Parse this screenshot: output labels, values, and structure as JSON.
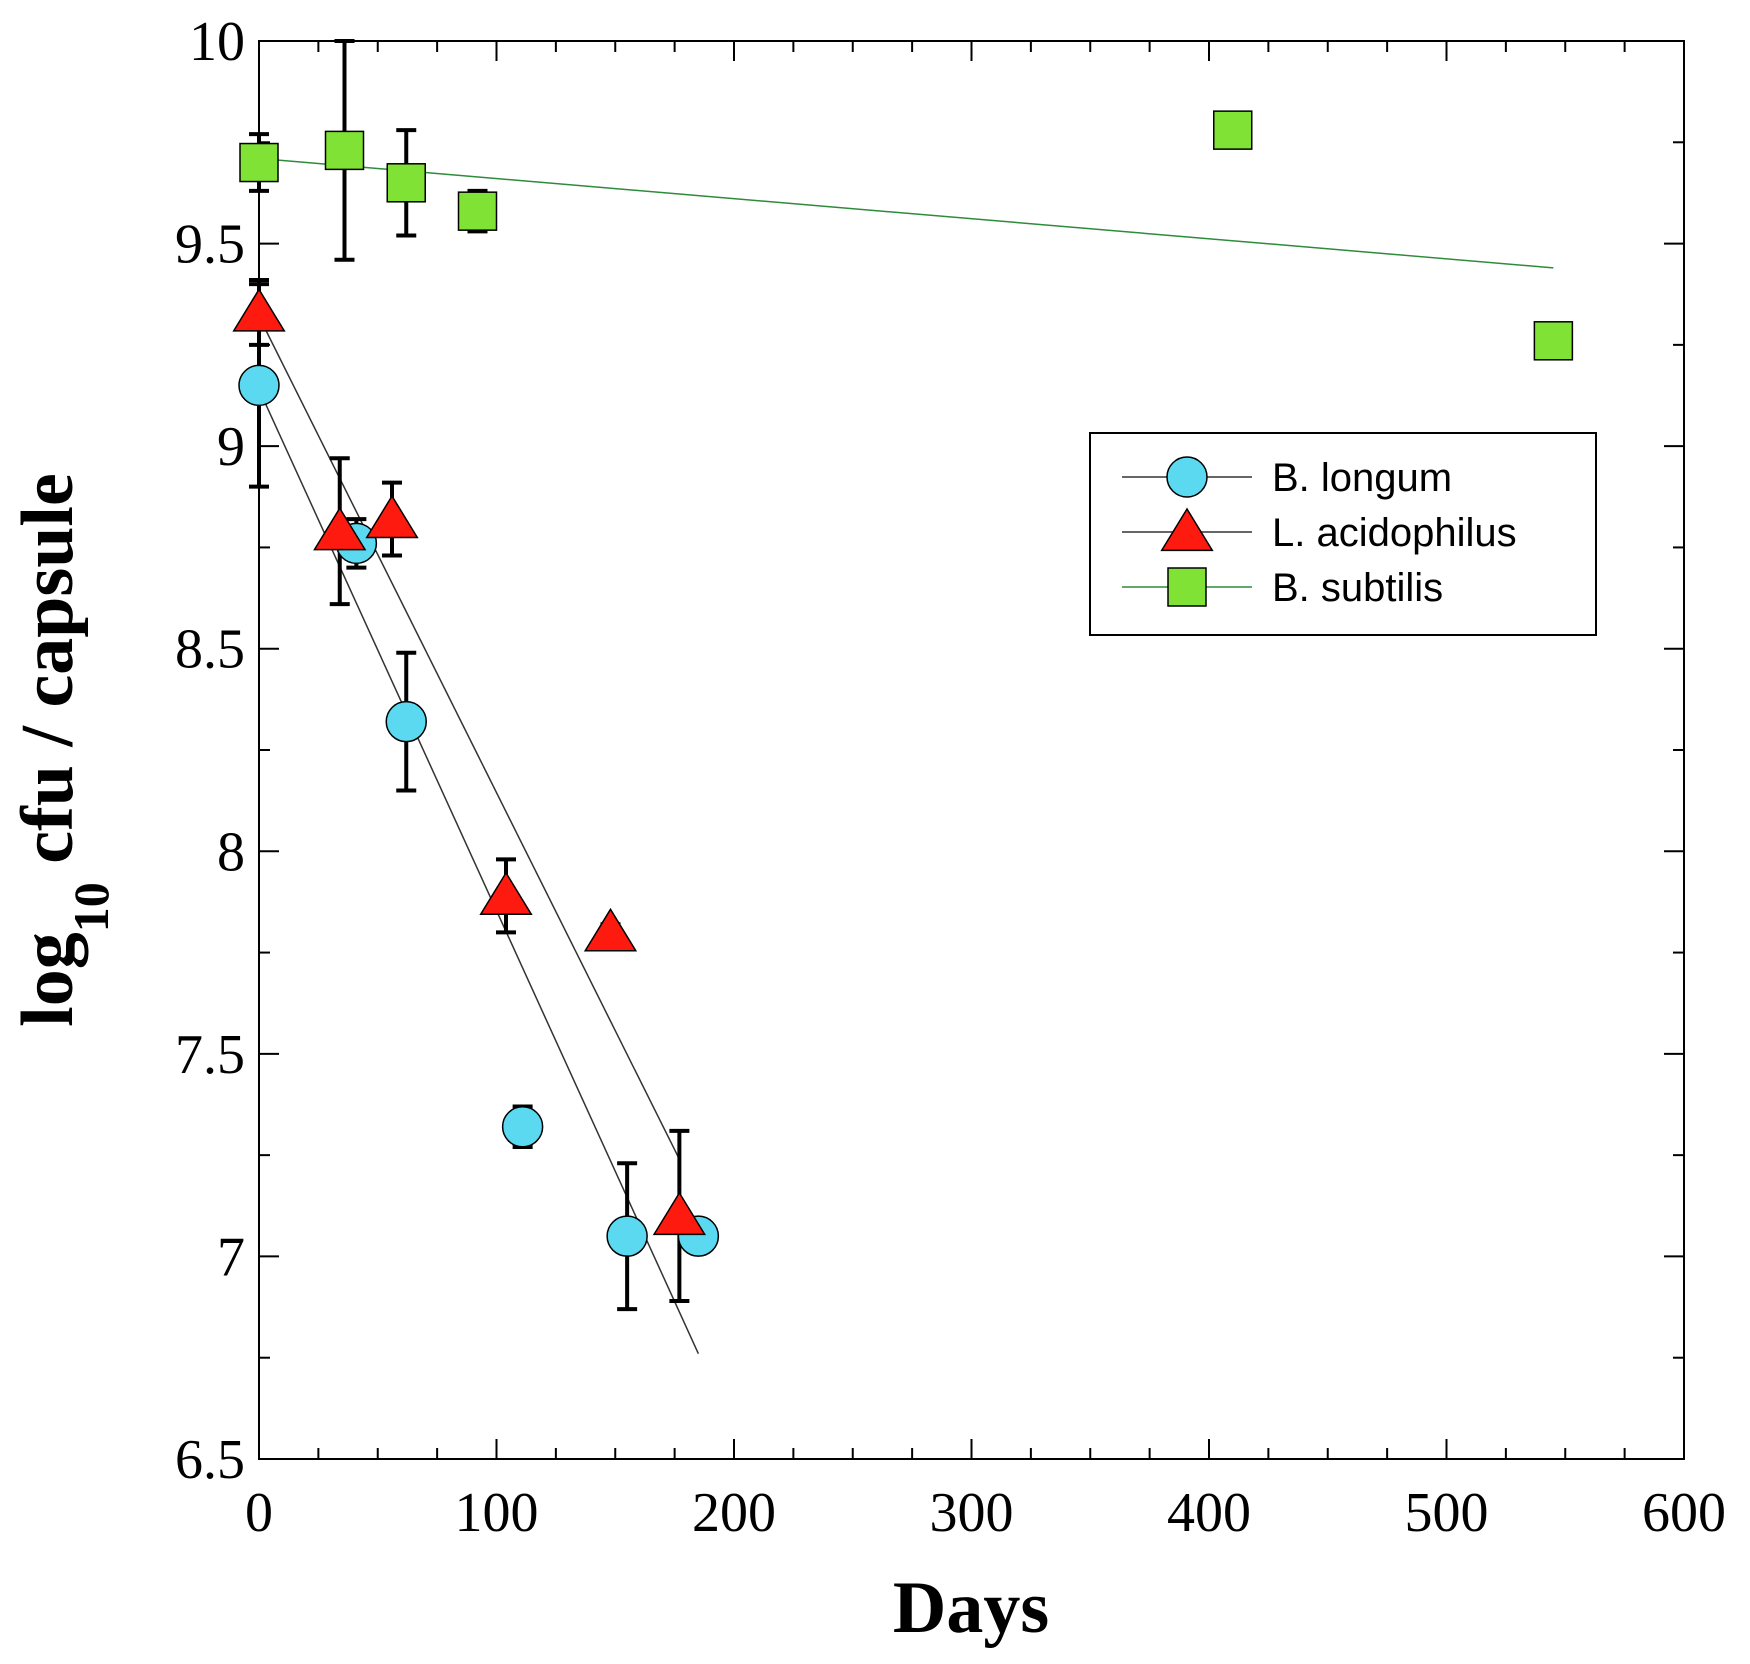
{
  "chart_data": {
    "type": "scatter",
    "xlabel": "Days",
    "ylabel": {
      "main": "log",
      "subscript": "10",
      "rest": " cfu / capsule"
    },
    "xlim": [
      0,
      600
    ],
    "ylim": [
      6.5,
      10
    ],
    "xticks": [
      0,
      100,
      200,
      300,
      400,
      500,
      600
    ],
    "yticks": [
      6.5,
      7,
      7.5,
      8,
      8.5,
      9,
      9.5,
      10
    ],
    "ytick_labels": [
      "6.5",
      "7",
      "7.5",
      "8",
      "8.5",
      "9",
      "9.5",
      "10"
    ],
    "xminor_step": 25,
    "yminor_step": 0.25,
    "grid": false,
    "legend_position": "center-right",
    "series": [
      {
        "name": "B. longum",
        "marker": "circle",
        "fill": "#5ad9f0",
        "line_color": "#333333",
        "points": [
          {
            "x": 0,
            "y": 9.15,
            "err": 0.25
          },
          {
            "x": 41,
            "y": 8.76,
            "err": 0.06
          },
          {
            "x": 62,
            "y": 8.32,
            "err": 0.17
          },
          {
            "x": 111,
            "y": 7.32,
            "err": 0.05
          },
          {
            "x": 155,
            "y": 7.05,
            "err": 0.18
          },
          {
            "x": 185,
            "y": 7.05,
            "err": 0
          }
        ],
        "fit": {
          "x": [
            0,
            185
          ],
          "y": [
            9.14,
            6.76
          ]
        }
      },
      {
        "name": "L. acidophilus",
        "marker": "triangle",
        "fill": "#ff1a0f",
        "line_color": "#333333",
        "points": [
          {
            "x": 0,
            "y": 9.33,
            "err": 0.08
          },
          {
            "x": 34,
            "y": 8.79,
            "err": 0.18
          },
          {
            "x": 56,
            "y": 8.82,
            "err": 0.09
          },
          {
            "x": 104,
            "y": 7.89,
            "err": 0.09
          },
          {
            "x": 148,
            "y": 7.8,
            "err": 0.02
          },
          {
            "x": 177,
            "y": 7.1,
            "err": 0.21
          }
        ],
        "fit": {
          "x": [
            0,
            177
          ],
          "y": [
            9.32,
            7.24
          ]
        }
      },
      {
        "name": "B. subtilis",
        "marker": "square",
        "fill": "#7fe234",
        "line_color": "#2e8b3a",
        "points": [
          {
            "x": 0,
            "y": 9.7,
            "err": 0.07
          },
          {
            "x": 36,
            "y": 9.73,
            "err": 0.27
          },
          {
            "x": 62,
            "y": 9.65,
            "err": 0.13
          },
          {
            "x": 92,
            "y": 9.58,
            "err": 0.05
          },
          {
            "x": 410,
            "y": 9.78,
            "err": 0.02
          },
          {
            "x": 545,
            "y": 9.26,
            "err": 0.02
          }
        ],
        "fit": {
          "x": [
            0,
            545
          ],
          "y": [
            9.71,
            9.44
          ]
        }
      }
    ]
  }
}
